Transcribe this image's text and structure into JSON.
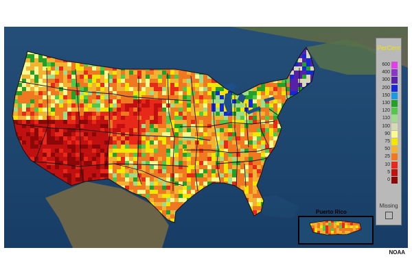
{
  "legend": {
    "title": "PerCent",
    "items": [
      {
        "label": "600",
        "color": "#e040e8"
      },
      {
        "label": "400",
        "color": "#8a36c8"
      },
      {
        "label": "300",
        "color": "#5620a8"
      },
      {
        "label": "200",
        "color": "#1428d8"
      },
      {
        "label": "150",
        "color": "#1a9ae0"
      },
      {
        "label": "130",
        "color": "#22a028"
      },
      {
        "label": "120",
        "color": "#50c84a"
      },
      {
        "label": "110",
        "color": "#9edc8a"
      },
      {
        "label": "100",
        "color": "#d8d8b4"
      },
      {
        "label": "90",
        "color": "#fafa90"
      },
      {
        "label": "75",
        "color": "#f5e600"
      },
      {
        "label": "50",
        "color": "#f3b232"
      },
      {
        "label": "25",
        "color": "#f07820"
      },
      {
        "label": "10",
        "color": "#e82818"
      },
      {
        "label": "5",
        "color": "#c01010"
      },
      {
        "label": "0",
        "color": "#8c0808"
      }
    ],
    "missing_label": "Missing"
  },
  "inset": {
    "label": "Puerto Rico"
  },
  "credit": "NOAA"
}
